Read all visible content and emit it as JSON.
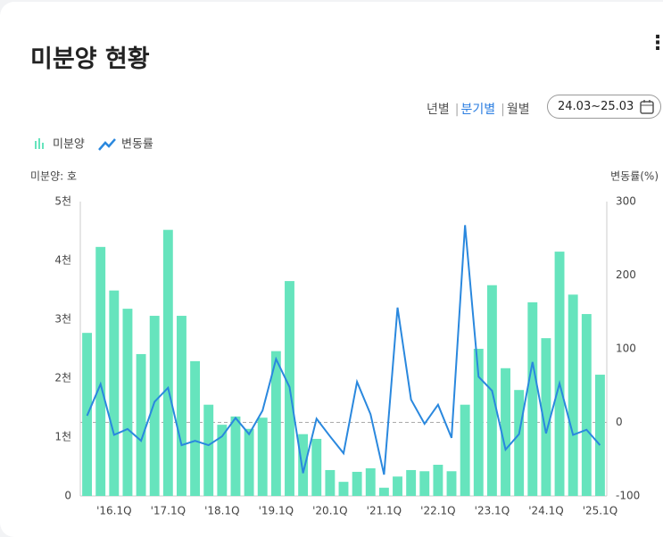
{
  "header": {
    "title": "미분양 현황",
    "periods": [
      "년별",
      "분기별",
      "월별"
    ],
    "active_period": "분기별",
    "date_range": "24.03~25.03"
  },
  "chart_data": {
    "type": "bar-line",
    "y_label": "미분양: 호",
    "y2_label": "변동률(%)",
    "categories": [
      null,
      null,
      "'16.1Q",
      null,
      null,
      null,
      "'17.1Q",
      null,
      null,
      null,
      "'18.1Q",
      null,
      null,
      null,
      "'19.1Q",
      null,
      null,
      null,
      "'20.1Q",
      null,
      null,
      null,
      "'21.1Q",
      null,
      null,
      null,
      "'22.1Q",
      null,
      null,
      null,
      "'23.1Q",
      null,
      null,
      null,
      "'24.1Q",
      null,
      null,
      null,
      "'25.1Q"
    ],
    "series": [
      {
        "name": "미분양",
        "color": "#66e4bd",
        "kind": "bar",
        "values": [
          2770,
          4230,
          3490,
          3180,
          2410,
          3060,
          4520,
          3060,
          2290,
          1550,
          1210,
          1350,
          1140,
          1330,
          2460,
          3650,
          1050,
          970,
          440,
          240,
          410,
          470,
          140,
          330,
          440,
          420,
          530,
          420,
          1550,
          2500,
          3580,
          2170,
          1800,
          3290,
          2680,
          4150,
          3420,
          3090,
          2060
        ]
      },
      {
        "name": "변동률",
        "color": "#2a88de",
        "kind": "line",
        "axis": "y2",
        "values": [
          9,
          52,
          -17,
          -9,
          -25,
          28,
          47,
          -31,
          -25,
          -31,
          -19,
          6,
          -16,
          16,
          86,
          48,
          -69,
          5,
          -19,
          -42,
          55,
          11,
          -71,
          156,
          31,
          -2,
          24,
          -21,
          268,
          62,
          43,
          -37,
          -16,
          82,
          -15,
          53,
          -17,
          -10,
          -31
        ]
      }
    ],
    "ylim": [
      0,
      5000
    ],
    "yticks": [
      0,
      {
        "value": 1000,
        "label": "1천"
      },
      {
        "value": 2000,
        "label": "2천"
      },
      {
        "value": 3000,
        "label": "3천"
      },
      {
        "value": 4000,
        "label": "4천"
      },
      {
        "value": 5000,
        "label": "5천"
      }
    ],
    "y2lim": [
      -100,
      300
    ],
    "y2ticks": [
      -100,
      0,
      100,
      200,
      300
    ]
  }
}
